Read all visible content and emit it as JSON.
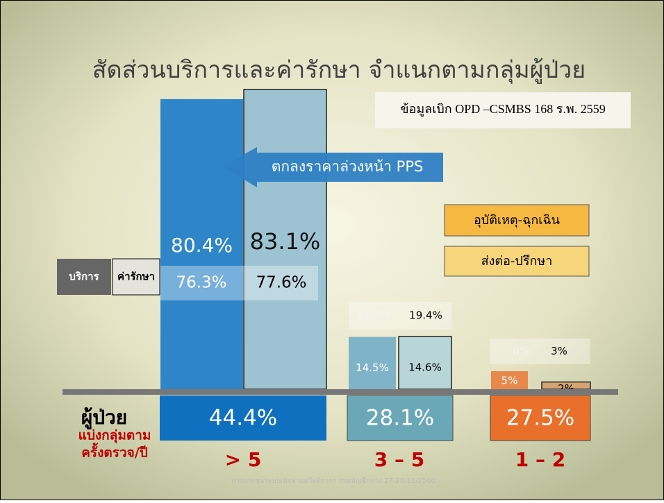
{
  "chart_data": {
    "type": "bar",
    "title": "สัดส่วนบริการและค่ารักษา จำแนกตามกลุ่มผู้ป่วย",
    "note": "ข้อมูลเบิก OPD –CSMBS 168 ร.พ. 2559",
    "arrow_label": "ตกลงราคาล่วงหน้า PPS",
    "annotations": [
      "อุบัติเหตุ-ฉุกเฉิน",
      "ส่งต่อ-ปรึกษา"
    ],
    "categories": [
      "> 5",
      "3 – 5",
      "1 – 2"
    ],
    "series": [
      {
        "name": "บริการ",
        "colors": [
          "#2e86c8",
          "#7fb3c8",
          "#e8884a"
        ],
        "values": [
          80.4,
          14.5,
          5
        ],
        "value_labels": [
          "80.4%",
          "14.5%",
          "5%"
        ],
        "inner_values": [
          76.3,
          17.7,
          6
        ],
        "inner_value_labels": [
          "76.3%",
          "17.7%",
          "6%"
        ]
      },
      {
        "name": "ค่ารักษา",
        "colors": [
          "#9dc3d2",
          "#b8d6d8",
          "#d4a574"
        ],
        "values": [
          83.1,
          14.6,
          2
        ],
        "value_labels": [
          "83.1%",
          "14.6%",
          "2%"
        ],
        "inner_values": [
          77.6,
          19.4,
          3
        ],
        "inner_value_labels": [
          "77.6%",
          "19.4%",
          "3%"
        ]
      }
    ],
    "patients": {
      "label": "ผู้ป่วย",
      "sublabel": [
        "แบ่งกลุ่มตาม",
        "ครั้งตรวจ/ปี"
      ],
      "colors": [
        "#1070c0",
        "#6aa8b8",
        "#e8702a"
      ],
      "values": [
        44.4,
        28.1,
        27.5
      ],
      "value_labels": [
        "44.4%",
        "28.1%",
        "27.5%"
      ]
    },
    "footer": "การประชุมระบบเบิกจ่ายสวัสดิการฯ กรมบัญชีกลาง 27-28/11/2560"
  }
}
